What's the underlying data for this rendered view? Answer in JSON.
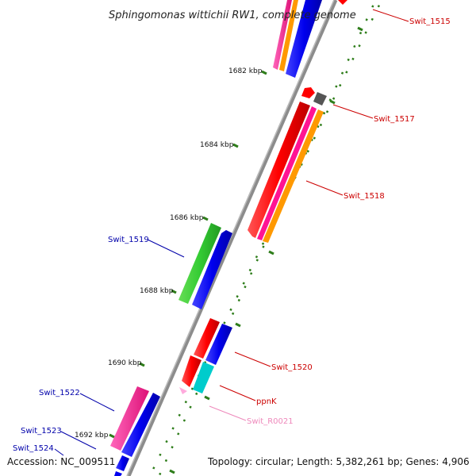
{
  "title": "Sphingomonas wittichii RW1, complete genome",
  "footer": {
    "accession": "Accession: NC_009511",
    "summary": "Topology: circular; Length: 5,382,261 bp; Genes: 4,906"
  },
  "ticks": [
    {
      "label": "1682 kbp"
    },
    {
      "label": "1684 kbp"
    },
    {
      "label": "1686 kbp"
    },
    {
      "label": "1688 kbp"
    },
    {
      "label": "1690 kbp"
    },
    {
      "label": "1692 kbp"
    }
  ],
  "genes": [
    {
      "name": "Swit_1515",
      "color": "#cc0000"
    },
    {
      "name": "Swit_1517",
      "color": "#cc0000"
    },
    {
      "name": "Swit_1518",
      "color": "#cc0000"
    },
    {
      "name": "Swit_1519",
      "color": "#0000aa"
    },
    {
      "name": "Swit_1520",
      "color": "#cc0000"
    },
    {
      "name": "ppnK",
      "color": "#cc0000"
    },
    {
      "name": "Swit_R0021",
      "color": "#ee88bb"
    },
    {
      "name": "Swit_1522",
      "color": "#0000aa"
    },
    {
      "name": "Swit_1523",
      "color": "#0000aa"
    },
    {
      "name": "Swit_1524",
      "color": "#0000aa"
    }
  ],
  "colors": {
    "backbone": "#8c8c8c",
    "dots": "#2e7d1a",
    "red": "#ff0000",
    "blue": "#0000ee",
    "magenta": "#ff1493",
    "orange": "#ff9900",
    "green": "#33cc33",
    "cyan": "#00cccc",
    "gray": "#555555",
    "pink": "#ffaadd"
  }
}
